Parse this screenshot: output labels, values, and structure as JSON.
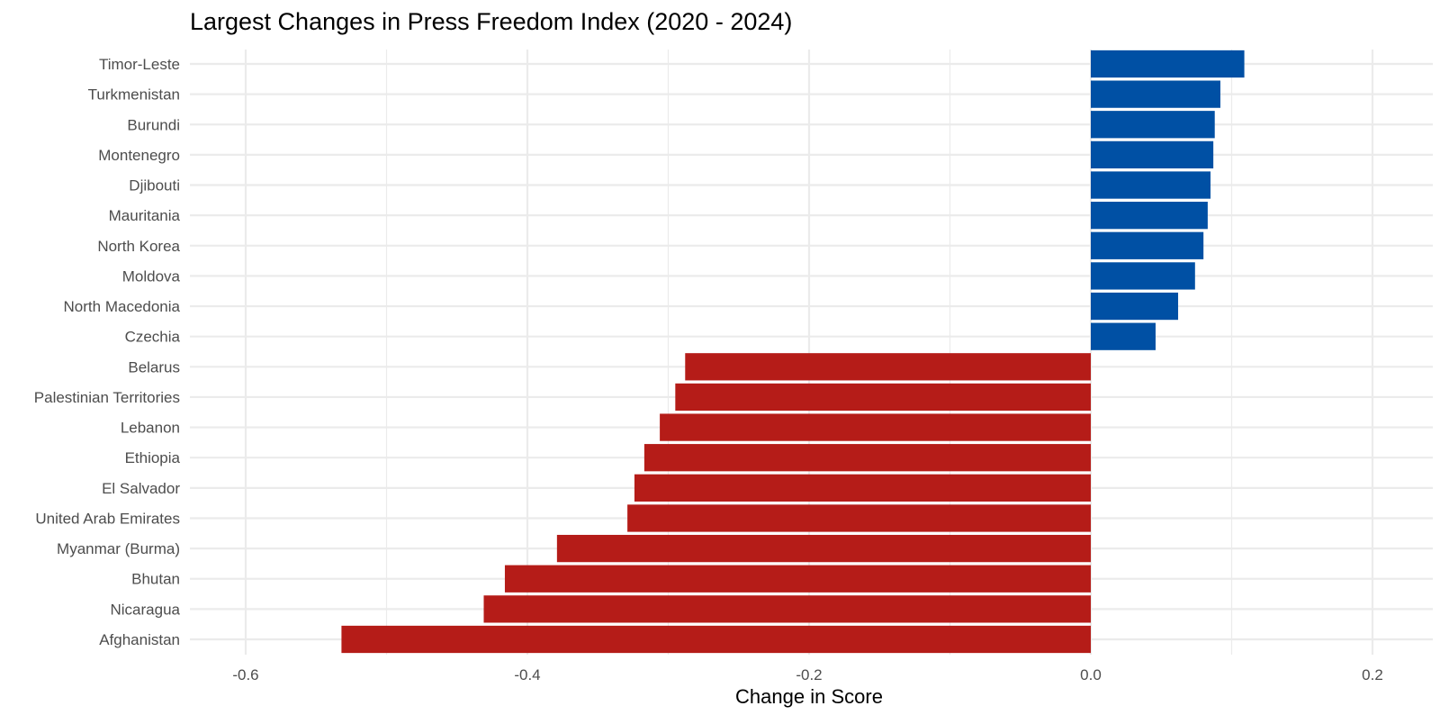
{
  "chart_data": {
    "type": "bar",
    "orientation": "horizontal",
    "title": "Largest Changes in Press Freedom Index (2020 - 2024)",
    "xlabel": "Change in Score",
    "ylabel": "",
    "xlim": [
      -0.64,
      0.24
    ],
    "xticks": [
      -0.6,
      -0.4,
      -0.2,
      0.0,
      0.2
    ],
    "xtick_labels": [
      "-0.6",
      "-0.4",
      "-0.2",
      "0.0",
      "0.2"
    ],
    "grid": true,
    "legend": "none",
    "colors": {
      "positive": "#0050a4",
      "negative": "#b51c18",
      "grid": "#ebebeb",
      "text": "#4d4d4d",
      "title": "#000000"
    },
    "categories": [
      "Timor-Leste",
      "Turkmenistan",
      "Burundi",
      "Montenegro",
      "Djibouti",
      "Mauritania",
      "North Korea",
      "Moldova",
      "North Macedonia",
      "Czechia",
      "Belarus",
      "Palestinian Territories",
      "Lebanon",
      "Ethiopia",
      "El Salvador",
      "United Arab Emirates",
      "Myanmar (Burma)",
      "Bhutan",
      "Nicaragua",
      "Afghanistan"
    ],
    "values": [
      0.109,
      0.092,
      0.088,
      0.087,
      0.085,
      0.083,
      0.08,
      0.074,
      0.062,
      0.046,
      -0.288,
      -0.295,
      -0.306,
      -0.317,
      -0.324,
      -0.329,
      -0.379,
      -0.416,
      -0.431,
      -0.532
    ]
  }
}
